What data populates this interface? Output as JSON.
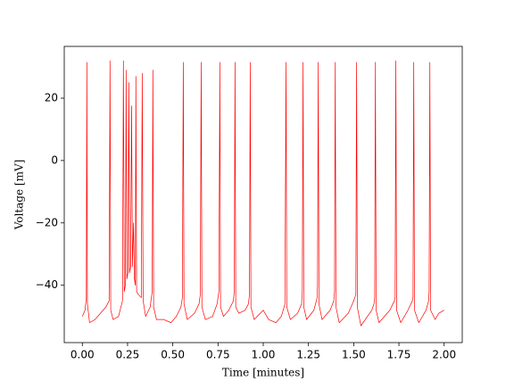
{
  "chart_data": {
    "type": "line",
    "xlabel": "Time [minutes]",
    "ylabel": "Voltage [mV]",
    "xlim": [
      -0.1,
      2.1
    ],
    "ylim": [
      -58.4,
      36.6
    ],
    "xticks": [
      {
        "value": 0,
        "label": "0.00"
      },
      0.25,
      {
        "value": 0.5,
        "label": "0.50"
      },
      0.75,
      {
        "value": 1,
        "label": "1.00"
      },
      1.25,
      {
        "value": 1.5,
        "label": "1.50"
      },
      1.75,
      {
        "value": 2,
        "label": "2.00"
      }
    ],
    "yticks": [
      {
        "value": -40,
        "label": "−40"
      },
      {
        "value": -20,
        "label": "−20"
      },
      0,
      20
    ],
    "grid": false,
    "series": [
      {
        "color": "#ff0000",
        "x": [
          0.0,
          0.015,
          0.022,
          0.025,
          0.028,
          0.04,
          0.07,
          0.1,
          0.13,
          0.148,
          0.153,
          0.157,
          0.17,
          0.2,
          0.222,
          0.227,
          0.232,
          0.238,
          0.242,
          0.246,
          0.252,
          0.257,
          0.261,
          0.267,
          0.272,
          0.277,
          0.283,
          0.288,
          0.293,
          0.296,
          0.3,
          0.31,
          0.326,
          0.331,
          0.336,
          0.35,
          0.375,
          0.386,
          0.39,
          0.394,
          0.41,
          0.45,
          0.49,
          0.52,
          0.545,
          0.553,
          0.558,
          0.562,
          0.58,
          0.62,
          0.645,
          0.652,
          0.657,
          0.661,
          0.68,
          0.72,
          0.745,
          0.755,
          0.76,
          0.764,
          0.78,
          0.81,
          0.835,
          0.84,
          0.844,
          0.848,
          0.865,
          0.9,
          0.918,
          0.924,
          0.928,
          0.932,
          0.95,
          1.0,
          1.03,
          1.07,
          1.1,
          1.12,
          1.126,
          1.13,
          1.15,
          1.19,
          1.212,
          1.216,
          1.22,
          1.224,
          1.24,
          1.28,
          1.298,
          1.3,
          1.304,
          1.308,
          1.325,
          1.37,
          1.39,
          1.394,
          1.398,
          1.402,
          1.42,
          1.47,
          1.5,
          1.512,
          1.516,
          1.52,
          1.54,
          1.6,
          1.612,
          1.616,
          1.62,
          1.624,
          1.64,
          1.7,
          1.725,
          1.729,
          1.733,
          1.737,
          1.76,
          1.8,
          1.824,
          1.828,
          1.832,
          1.836,
          1.86,
          1.9,
          1.914,
          1.917,
          1.921,
          1.925,
          1.95,
          1.97,
          2.0
        ],
        "values": [
          -50,
          -48,
          -44,
          31.5,
          -46,
          -52,
          -51,
          -49,
          -47,
          -45,
          32,
          -48,
          -51,
          -50,
          -45,
          32,
          -42,
          -40,
          29,
          -38,
          -36,
          25,
          -36,
          -34,
          17.5,
          -34,
          -20,
          -38,
          -40,
          27,
          -42,
          -43,
          -44,
          28,
          -45,
          -50,
          -47,
          -42,
          29,
          -47,
          -51,
          -51,
          -52,
          -50,
          -47,
          -44,
          31.5,
          -46,
          -51,
          -49,
          -46,
          -43,
          31.5,
          -47,
          -51,
          -50,
          -46,
          -42,
          31.5,
          -47,
          -50,
          -48,
          -45,
          -42,
          31.5,
          -47,
          -49,
          -48,
          -46,
          -43,
          31.5,
          -47,
          -51,
          -48,
          -51,
          -52,
          -50,
          -46,
          31.5,
          -47,
          -51,
          -49,
          -46,
          -42,
          31.5,
          -47,
          -51,
          -48,
          -44,
          -40,
          31.5,
          -46,
          -51,
          -48,
          -45,
          -42,
          31.5,
          -47,
          -52,
          -49,
          -45,
          -43,
          31.5,
          -47,
          -53,
          -48,
          -46,
          -44,
          31.5,
          -48,
          -52,
          -48,
          -45,
          -44,
          32,
          -48,
          -52,
          -48,
          -45,
          -44,
          31.5,
          -48,
          -52,
          -48,
          -45,
          -42,
          31.5,
          -48,
          -51,
          -49,
          -48
        ]
      }
    ]
  }
}
